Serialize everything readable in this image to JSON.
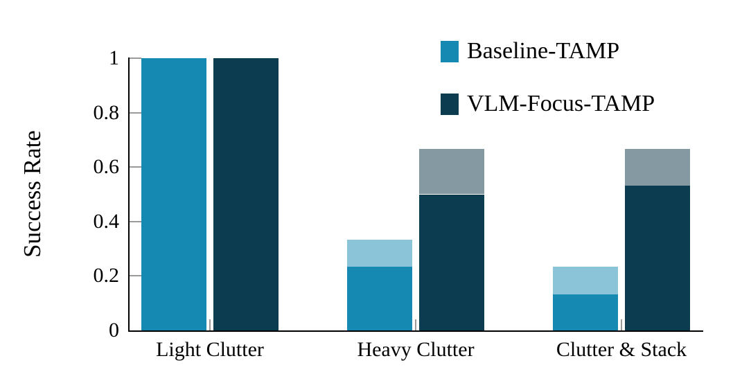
{
  "chart_data": {
    "type": "bar",
    "title": "",
    "ylabel": "Success Rate",
    "xlabel": "",
    "categories": [
      "Light Clutter",
      "Heavy Clutter",
      "Clutter & Stack"
    ],
    "series": [
      {
        "name": "Baseline-TAMP",
        "solid_values": [
          1.0,
          0.233,
          0.133
        ],
        "cap_values": [
          1.0,
          0.333,
          0.233
        ],
        "solid_color": "#1589B2",
        "cap_color": "#8BC4D9"
      },
      {
        "name": "VLM-Focus-TAMP",
        "solid_values": [
          1.0,
          0.5,
          0.533
        ],
        "cap_values": [
          1.0,
          0.667,
          0.667
        ],
        "solid_color": "#0C3C50",
        "cap_color": "#8599A3"
      }
    ],
    "ylim": [
      0,
      1
    ],
    "yticks": [
      0,
      0.2,
      0.4,
      0.6,
      0.8,
      1
    ],
    "ytick_labels": [
      "0",
      "0.2",
      "0.4",
      "0.6",
      "0.8",
      "1"
    ],
    "grid": false,
    "legend_position": "top-right",
    "axis_color": "#000000",
    "tick_color": "#9a9a9a",
    "background_color": "#ffffff"
  }
}
